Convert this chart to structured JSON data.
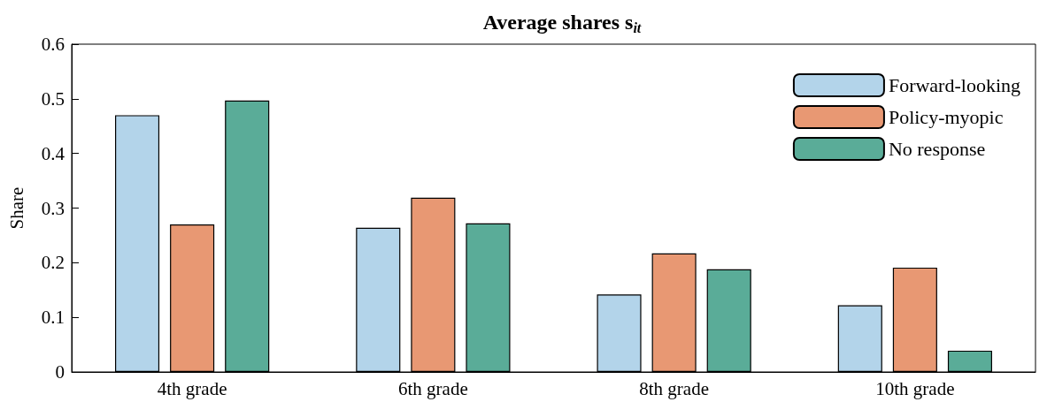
{
  "chart_data": {
    "type": "bar",
    "title": "Average shares s$_{it}$",
    "ylabel": "Share",
    "categories": [
      "4th grade",
      "6th grade",
      "8th grade",
      "10th grade"
    ],
    "series": [
      {
        "name": "Forward-looking",
        "color": "#b3d4ea",
        "values": [
          0.47,
          0.264,
          0.142,
          0.122
        ]
      },
      {
        "name": "Policy-myopic",
        "color": "#e89873",
        "values": [
          0.27,
          0.319,
          0.217,
          0.191
        ]
      },
      {
        "name": "No response",
        "color": "#5aac98",
        "values": [
          0.497,
          0.272,
          0.188,
          0.039
        ]
      }
    ],
    "ylim": [
      0,
      0.6
    ],
    "yticks": [
      0,
      0.1,
      0.2,
      0.3,
      0.4,
      0.5,
      0.6
    ],
    "grid": false,
    "legend": "top right"
  }
}
